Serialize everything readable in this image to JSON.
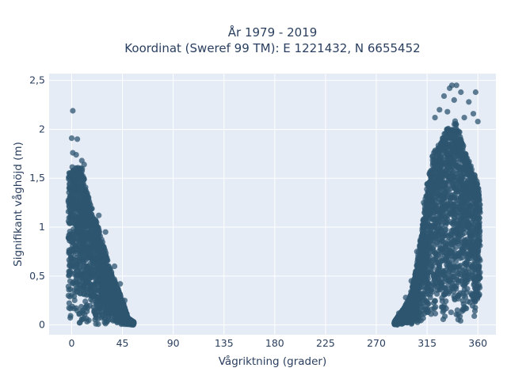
{
  "chart_data": {
    "type": "scatter",
    "title_line1": "År 1979 - 2019",
    "title_line2": "Koordinat (Sweref 99 TM): E 1221432, N 6655452",
    "xlabel": "Vågriktning (grader)",
    "ylabel": "Signifikant våghöjd (m)",
    "xlim": [
      -20,
      376
    ],
    "ylim": [
      -0.1,
      2.57
    ],
    "x_ticks": [
      0,
      45,
      90,
      135,
      180,
      225,
      270,
      315,
      360
    ],
    "x_tick_labels": [
      "0",
      "45",
      "90",
      "135",
      "180",
      "225",
      "270",
      "315",
      "360"
    ],
    "y_ticks": [
      0,
      0.5,
      1,
      1.5,
      2,
      2.5
    ],
    "y_tick_labels": [
      "0",
      "0,5",
      "1",
      "1,5",
      "2",
      "2,5"
    ],
    "grid": true,
    "legend": false,
    "colors": {
      "marker": "#2e5570",
      "plot_background": "#e5ecf6",
      "grid": "#ffffff",
      "text": "#2a3f5f"
    },
    "clusters": [
      {
        "x_range": [
          -3,
          55
        ],
        "envelope": [
          [
            -3,
            1.55
          ],
          [
            0,
            1.62
          ],
          [
            5,
            1.62
          ],
          [
            10,
            1.6
          ],
          [
            15,
            1.3
          ],
          [
            20,
            1.12
          ],
          [
            25,
            0.95
          ],
          [
            30,
            0.75
          ],
          [
            35,
            0.55
          ],
          [
            40,
            0.4
          ],
          [
            45,
            0.25
          ],
          [
            50,
            0.07
          ],
          [
            55,
            0.03
          ]
        ],
        "outliers": [
          [
            1,
            2.19
          ],
          [
            0,
            1.91
          ],
          [
            5,
            1.9
          ],
          [
            1,
            1.76
          ],
          [
            4,
            1.74
          ],
          [
            9,
            1.68
          ],
          [
            11,
            1.64
          ],
          [
            24,
            1.12
          ],
          [
            30,
            0.95
          ],
          [
            38,
            0.6
          ],
          [
            43,
            0.42
          ],
          [
            47,
            0.25
          ],
          [
            50,
            0.05
          ],
          [
            53,
            0.04
          ]
        ]
      },
      {
        "x_range": [
          286,
          362
        ],
        "envelope": [
          [
            286,
            0.03
          ],
          [
            290,
            0.1
          ],
          [
            295,
            0.18
          ],
          [
            300,
            0.3
          ],
          [
            305,
            0.55
          ],
          [
            310,
            0.95
          ],
          [
            315,
            1.45
          ],
          [
            320,
            1.75
          ],
          [
            325,
            1.85
          ],
          [
            330,
            1.95
          ],
          [
            335,
            2.05
          ],
          [
            340,
            2.1
          ],
          [
            345,
            1.95
          ],
          [
            350,
            1.75
          ],
          [
            355,
            1.6
          ],
          [
            360,
            1.45
          ],
          [
            362,
            1.25
          ]
        ],
        "outliers": [
          [
            337,
            2.45
          ],
          [
            341,
            2.45
          ],
          [
            335,
            2.42
          ],
          [
            345,
            2.38
          ],
          [
            358,
            2.38
          ],
          [
            330,
            2.34
          ],
          [
            339,
            2.3
          ],
          [
            352,
            2.28
          ],
          [
            326,
            2.2
          ],
          [
            333,
            2.18
          ],
          [
            356,
            2.16
          ],
          [
            348,
            2.12
          ],
          [
            322,
            2.12
          ],
          [
            360,
            2.08
          ],
          [
            318,
            1.55
          ],
          [
            312,
            1.25
          ],
          [
            306,
            0.75
          ],
          [
            301,
            0.45
          ],
          [
            296,
            0.28
          ],
          [
            290,
            0.12
          ],
          [
            287,
            0.05
          ]
        ]
      }
    ]
  }
}
